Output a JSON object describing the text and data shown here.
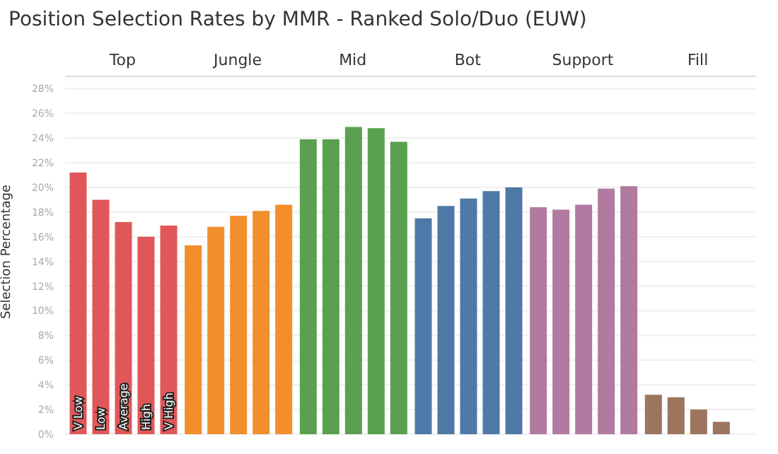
{
  "chart_data": {
    "type": "bar",
    "title": "Position Selection Rates by MMR - Ranked Solo/Duo (EUW)",
    "ylabel": "Selection Percentage",
    "categories": [
      "Top",
      "Jungle",
      "Mid",
      "Bot",
      "Support",
      "Fill"
    ],
    "series": [
      {
        "name": "V Low",
        "colors": [
          "#e15759",
          "#f28e2b",
          "#59a14f",
          "#4e79a7",
          "#b07aa1",
          "#9c755f"
        ],
        "values": [
          21.2,
          15.3,
          23.9,
          17.5,
          18.4,
          3.2
        ]
      },
      {
        "name": "Low",
        "colors": [
          "#e15759",
          "#f28e2b",
          "#59a14f",
          "#4e79a7",
          "#b07aa1",
          "#9c755f"
        ],
        "values": [
          19.0,
          16.8,
          23.9,
          18.5,
          18.2,
          3.0
        ]
      },
      {
        "name": "Average",
        "colors": [
          "#e15759",
          "#f28e2b",
          "#59a14f",
          "#4e79a7",
          "#b07aa1",
          "#9c755f"
        ],
        "values": [
          17.2,
          17.7,
          24.9,
          19.1,
          18.6,
          2.0
        ]
      },
      {
        "name": "High",
        "colors": [
          "#e15759",
          "#f28e2b",
          "#59a14f",
          "#4e79a7",
          "#b07aa1",
          "#9c755f"
        ],
        "values": [
          16.0,
          18.1,
          24.8,
          19.7,
          19.9,
          1.0
        ]
      },
      {
        "name": "V High",
        "colors": [
          "#e15759",
          "#f28e2b",
          "#59a14f",
          "#4e79a7",
          "#b07aa1",
          "#9c755f"
        ],
        "values": [
          16.9,
          18.6,
          23.7,
          20.0,
          20.1,
          null
        ]
      }
    ],
    "ylim": [
      0,
      29
    ],
    "yticks": [
      {
        "value": 0,
        "label": "0%"
      },
      {
        "value": 2,
        "label": "2%"
      },
      {
        "value": 4,
        "label": "4%"
      },
      {
        "value": 6,
        "label": "6%"
      },
      {
        "value": 8,
        "label": "8%"
      },
      {
        "value": 10,
        "label": "10%"
      },
      {
        "value": 12,
        "label": "12%"
      },
      {
        "value": 14,
        "label": "14%"
      },
      {
        "value": 16,
        "label": "16%"
      },
      {
        "value": 18,
        "label": "18%"
      },
      {
        "value": 20,
        "label": "20%"
      },
      {
        "value": 22,
        "label": "22%"
      },
      {
        "value": 24,
        "label": "24%"
      },
      {
        "value": 26,
        "label": "26%"
      },
      {
        "value": 28,
        "label": "28%"
      }
    ],
    "grid": "y",
    "legend": false
  }
}
